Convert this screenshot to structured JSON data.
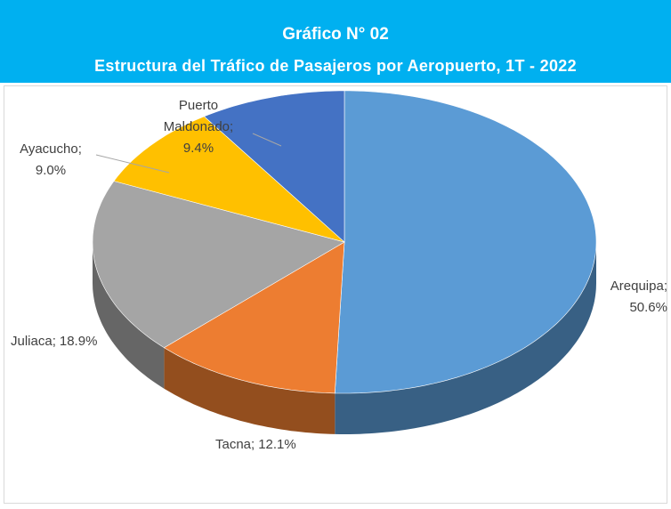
{
  "chart_data": {
    "type": "pie3d",
    "title": "Gráfico N° 02",
    "subtitle": "Estructura del Tráfico de Pasajeros por Aeropuerto, 1T - 2022",
    "categories": [
      "Arequipa",
      "Tacna",
      "Juliaca",
      "Ayacucho",
      "Puerto Maldonado"
    ],
    "values": [
      50.6,
      12.1,
      18.9,
      9.0,
      9.4
    ],
    "value_labels": [
      "50.6%",
      "12.1%",
      "18.9%",
      "9.0%",
      "9.4%"
    ],
    "label_separator": ";",
    "colors": [
      "#5b9bd5",
      "#ed7d31",
      "#a5a5a5",
      "#ffc000",
      "#4472c4"
    ]
  }
}
